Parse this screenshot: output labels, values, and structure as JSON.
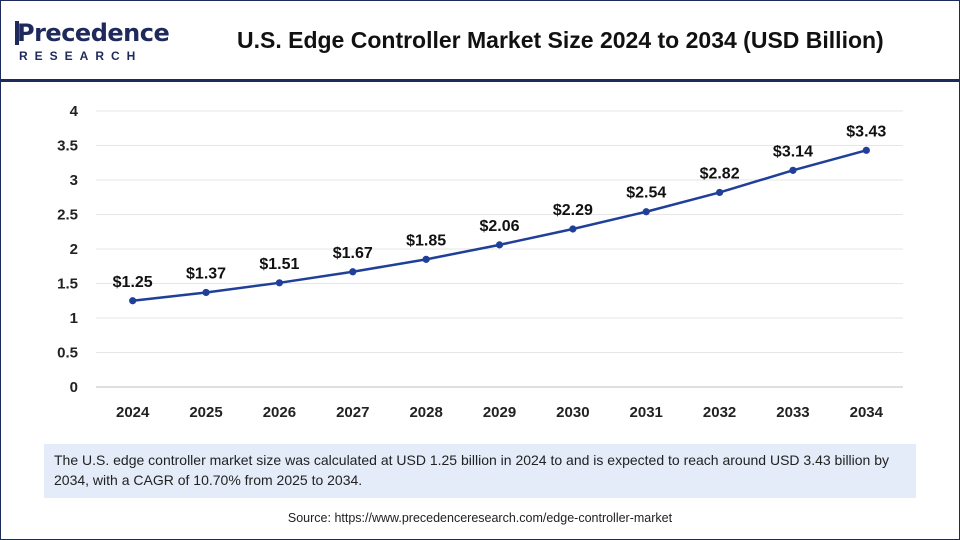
{
  "header": {
    "logo_top": "Precedence",
    "logo_bottom": "RESEARCH",
    "title": "U.S. Edge Controller Market Size 2024 to 2034 (USD Billion)"
  },
  "colors": {
    "brand": "#1f2a5c",
    "series": "#1f3f99",
    "note_bg": "#e3ecf8"
  },
  "chart_data": {
    "type": "line",
    "title": "U.S. Edge Controller Market Size 2024 to 2034 (USD Billion)",
    "xlabel": "",
    "ylabel": "",
    "x": [
      "2024",
      "2025",
      "2026",
      "2027",
      "2028",
      "2029",
      "2030",
      "2031",
      "2032",
      "2033",
      "2034"
    ],
    "values": [
      1.25,
      1.37,
      1.51,
      1.67,
      1.85,
      2.06,
      2.29,
      2.54,
      2.82,
      3.14,
      3.43
    ],
    "data_labels": [
      "$1.25",
      "$1.37",
      "$1.51",
      "$1.67",
      "$1.85",
      "$2.06",
      "$2.29",
      "$2.54",
      "$2.82",
      "$3.14",
      "$3.43"
    ],
    "ylim": [
      0,
      4
    ],
    "yticks": [
      "0",
      "0.5",
      "1",
      "1.5",
      "2",
      "2.5",
      "3",
      "3.5",
      "4"
    ],
    "grid": true,
    "legend": "none"
  },
  "footer": {
    "note": "The U.S. edge controller market size was calculated at USD 1.25 billion in 2024 to and is expected to reach around USD 3.43 billion by 2034, with a CAGR of 10.70% from 2025 to 2034.",
    "source": "Source: https://www.precedenceresearch.com/edge-controller-market"
  }
}
